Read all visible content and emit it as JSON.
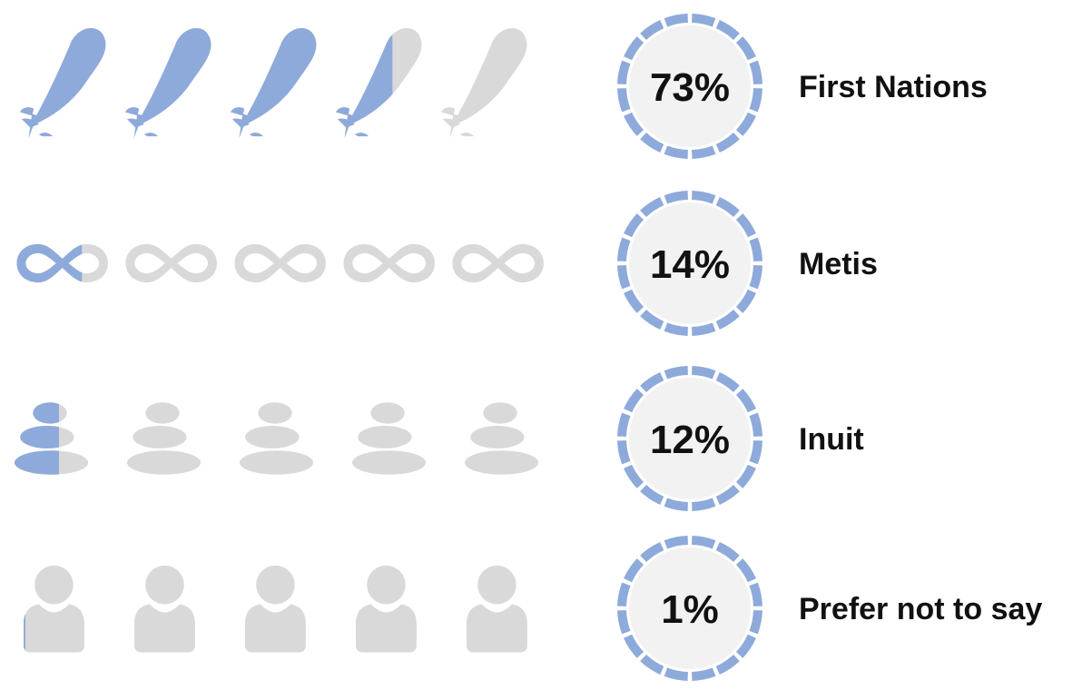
{
  "chart_data": {
    "type": "pictograph",
    "icons_per_row": 5,
    "colors": {
      "filled": "#8eaadb",
      "empty": "#d9d9d9",
      "ring": "#8eaadb",
      "badge": "#f2f2f2"
    },
    "rows": [
      {
        "label": "First Nations",
        "value": 73,
        "value_label": "73%",
        "icon": "feather-icon"
      },
      {
        "label": "Metis",
        "value": 14,
        "value_label": "14%",
        "icon": "infinity-icon"
      },
      {
        "label": "Inuit",
        "value": 12,
        "value_label": "12%",
        "icon": "stacked-stones-icon"
      },
      {
        "label": "Prefer not to say",
        "value": 1,
        "value_label": "1%",
        "icon": "person-icon"
      }
    ]
  }
}
